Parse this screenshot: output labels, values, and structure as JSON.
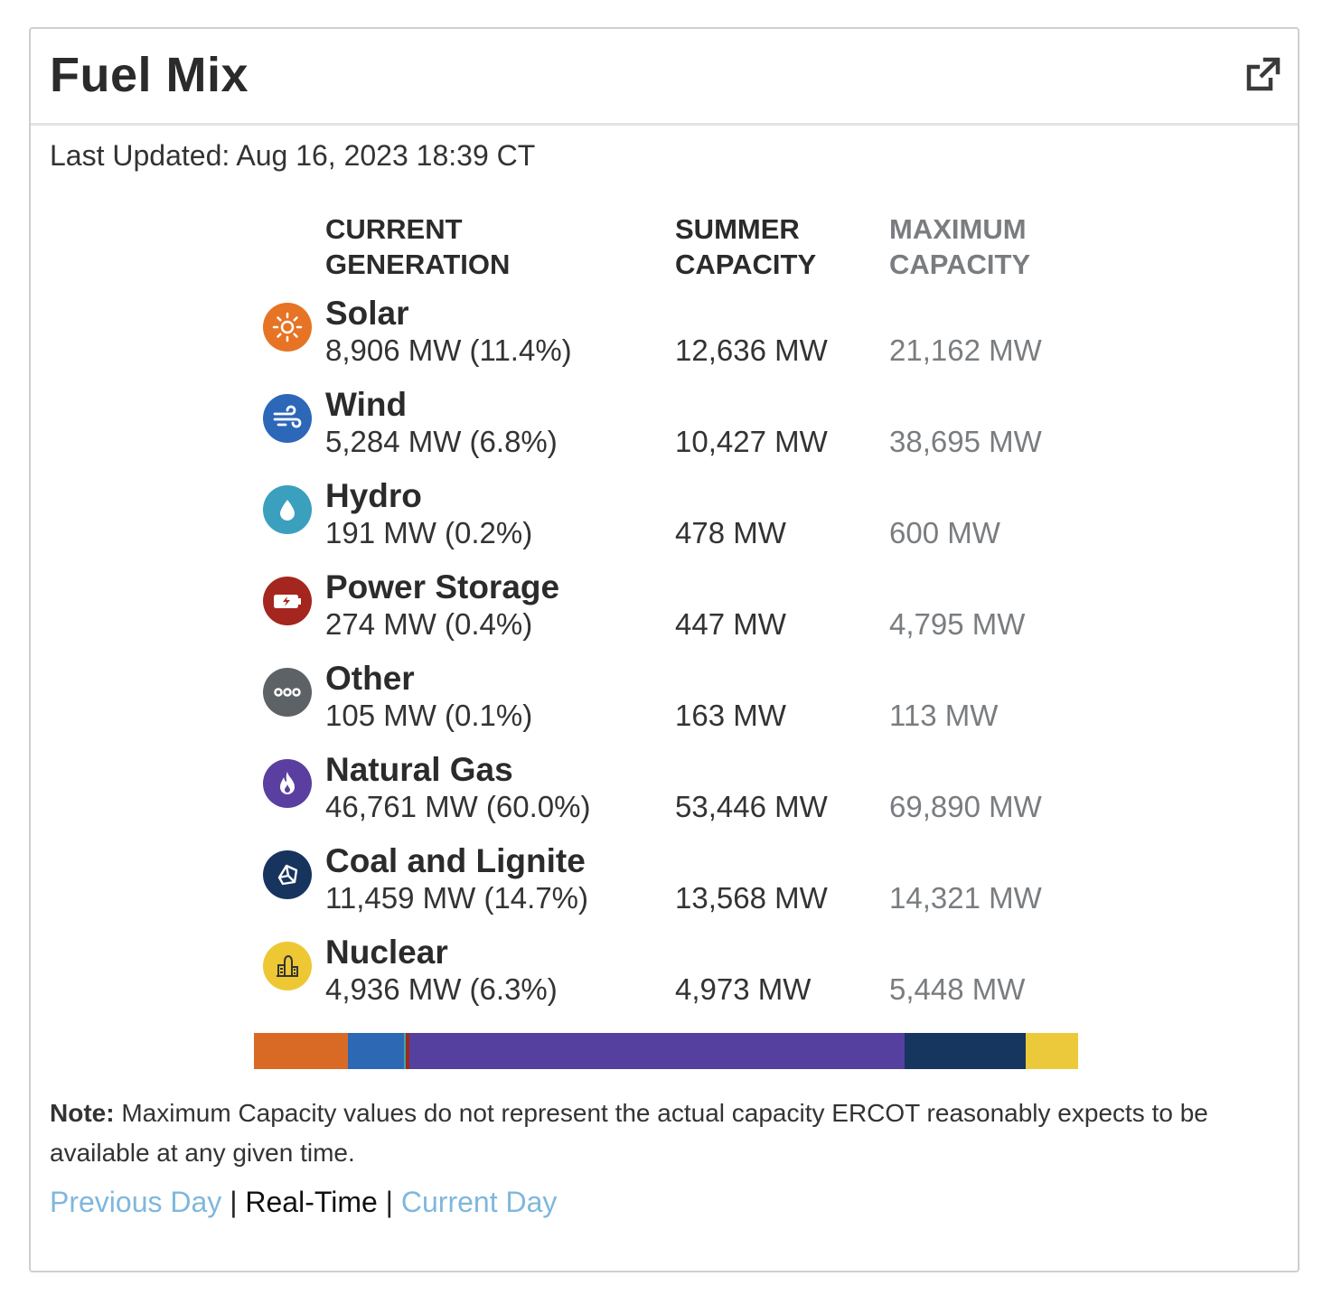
{
  "widget": {
    "title": "Fuel Mix",
    "popout_icon": "external-link-icon",
    "last_updated": "Last Updated: Aug 16, 2023 18:39 CT"
  },
  "columns": {
    "current_l1": "CURRENT",
    "current_l2": "GENERATION",
    "summer_l1": "SUMMER",
    "summer_l2": "CAPACITY",
    "max_l1": "MAXIMUM",
    "max_l2": "CAPACITY"
  },
  "fuels": [
    {
      "name": "Solar",
      "generation": "8,906 MW (11.4%)",
      "summer": "12,636 MW",
      "maximum": "21,162 MW",
      "icon": "sun-icon",
      "color": "#e06b26"
    },
    {
      "name": "Wind",
      "generation": "5,284 MW (6.8%)",
      "summer": "10,427 MW",
      "maximum": "38,695 MW",
      "icon": "wind-icon",
      "color": "#2c67b8"
    },
    {
      "name": "Hydro",
      "generation": "191 MW (0.2%)",
      "summer": "478 MW",
      "maximum": "600 MW",
      "icon": "water-drop-icon",
      "color": "#3b9fbe"
    },
    {
      "name": "Power Storage",
      "generation": "274 MW (0.4%)",
      "summer": "447 MW",
      "maximum": "4,795 MW",
      "icon": "battery-icon",
      "color": "#a4261f"
    },
    {
      "name": "Other",
      "generation": "105 MW (0.1%)",
      "summer": "163 MW",
      "maximum": "113 MW",
      "icon": "more-dots-icon",
      "color": "#5d6266"
    },
    {
      "name": "Natural Gas",
      "generation": "46,761 MW (60.0%)",
      "summer": "53,446 MW",
      "maximum": "69,890 MW",
      "icon": "flame-icon",
      "color": "#5a3fa0"
    },
    {
      "name": "Coal and Lignite",
      "generation": "11,459 MW (14.7%)",
      "summer": "13,568 MW",
      "maximum": "14,321 MW",
      "icon": "coal-icon",
      "color": "#17345f"
    },
    {
      "name": "Nuclear",
      "generation": "4,936 MW (6.3%)",
      "summer": "4,973 MW",
      "maximum": "5,448 MW",
      "icon": "nuclear-plant-icon",
      "color": "#edc834"
    }
  ],
  "mix_bar": [
    {
      "fuel": "Solar",
      "percent": 11.4,
      "color": "#d96a26"
    },
    {
      "fuel": "Wind",
      "percent": 6.8,
      "color": "#2d68b5"
    },
    {
      "fuel": "Hydro",
      "percent": 0.2,
      "color": "#3fa7a0"
    },
    {
      "fuel": "Power Storage",
      "percent": 0.4,
      "color": "#9b2a1f"
    },
    {
      "fuel": "Other",
      "percent": 0.1,
      "color": "#5d6266"
    },
    {
      "fuel": "Natural Gas",
      "percent": 60.0,
      "color": "#5540a0"
    },
    {
      "fuel": "Coal and Lignite",
      "percent": 14.7,
      "color": "#16355f"
    },
    {
      "fuel": "Nuclear",
      "percent": 6.3,
      "color": "#ecc93a"
    }
  ],
  "note": {
    "label": "Note:",
    "text": " Maximum Capacity values do not represent the actual capacity ERCOT reasonably expects to be available at any given time."
  },
  "nav": {
    "previous": "Previous Day",
    "sep": " | ",
    "realtime": "Real-Time",
    "current": "Current Day"
  },
  "colors": {
    "link": "#7fb7dc",
    "muted": "#7a7d80"
  }
}
